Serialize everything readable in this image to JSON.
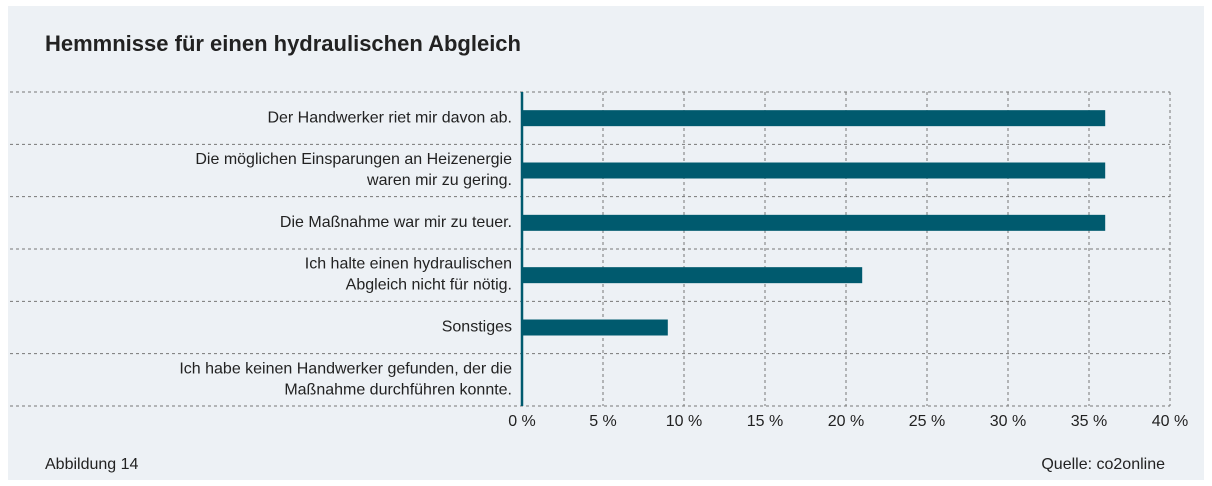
{
  "chart_data": {
    "type": "bar",
    "orientation": "horizontal",
    "title": "Hemmnisse für einen hydraulischen Abgleich",
    "categories": [
      "Der Handwerker riet mir davon ab.",
      "Die möglichen Einsparungen an Heizenergie\nwaren mir zu gering.",
      "Die Maßnahme war mir zu teuer.",
      "Ich halte einen hydraulischen\nAbgleich nicht für nötig.",
      "Sonstiges",
      "Ich habe keinen Handwerker gefunden, der die\nMaßnahme durchführen konnte."
    ],
    "values": [
      36,
      36,
      36,
      21,
      9,
      0
    ],
    "color": "#005a6e",
    "xlim": [
      0,
      40
    ],
    "xticks": [
      {
        "value": 0,
        "label": "0 %"
      },
      {
        "value": 5,
        "label": "5 %"
      },
      {
        "value": 10,
        "label": "10 %"
      },
      {
        "value": 15,
        "label": "15 %"
      },
      {
        "value": 20,
        "label": "20 %"
      },
      {
        "value": 25,
        "label": "25 %"
      },
      {
        "value": 30,
        "label": "30 %"
      },
      {
        "value": 35,
        "label": "35 %"
      },
      {
        "value": 40,
        "label": "40 %"
      }
    ],
    "grid": true,
    "figure_label": "Abbildung 14",
    "source": "Quelle: co2online"
  }
}
